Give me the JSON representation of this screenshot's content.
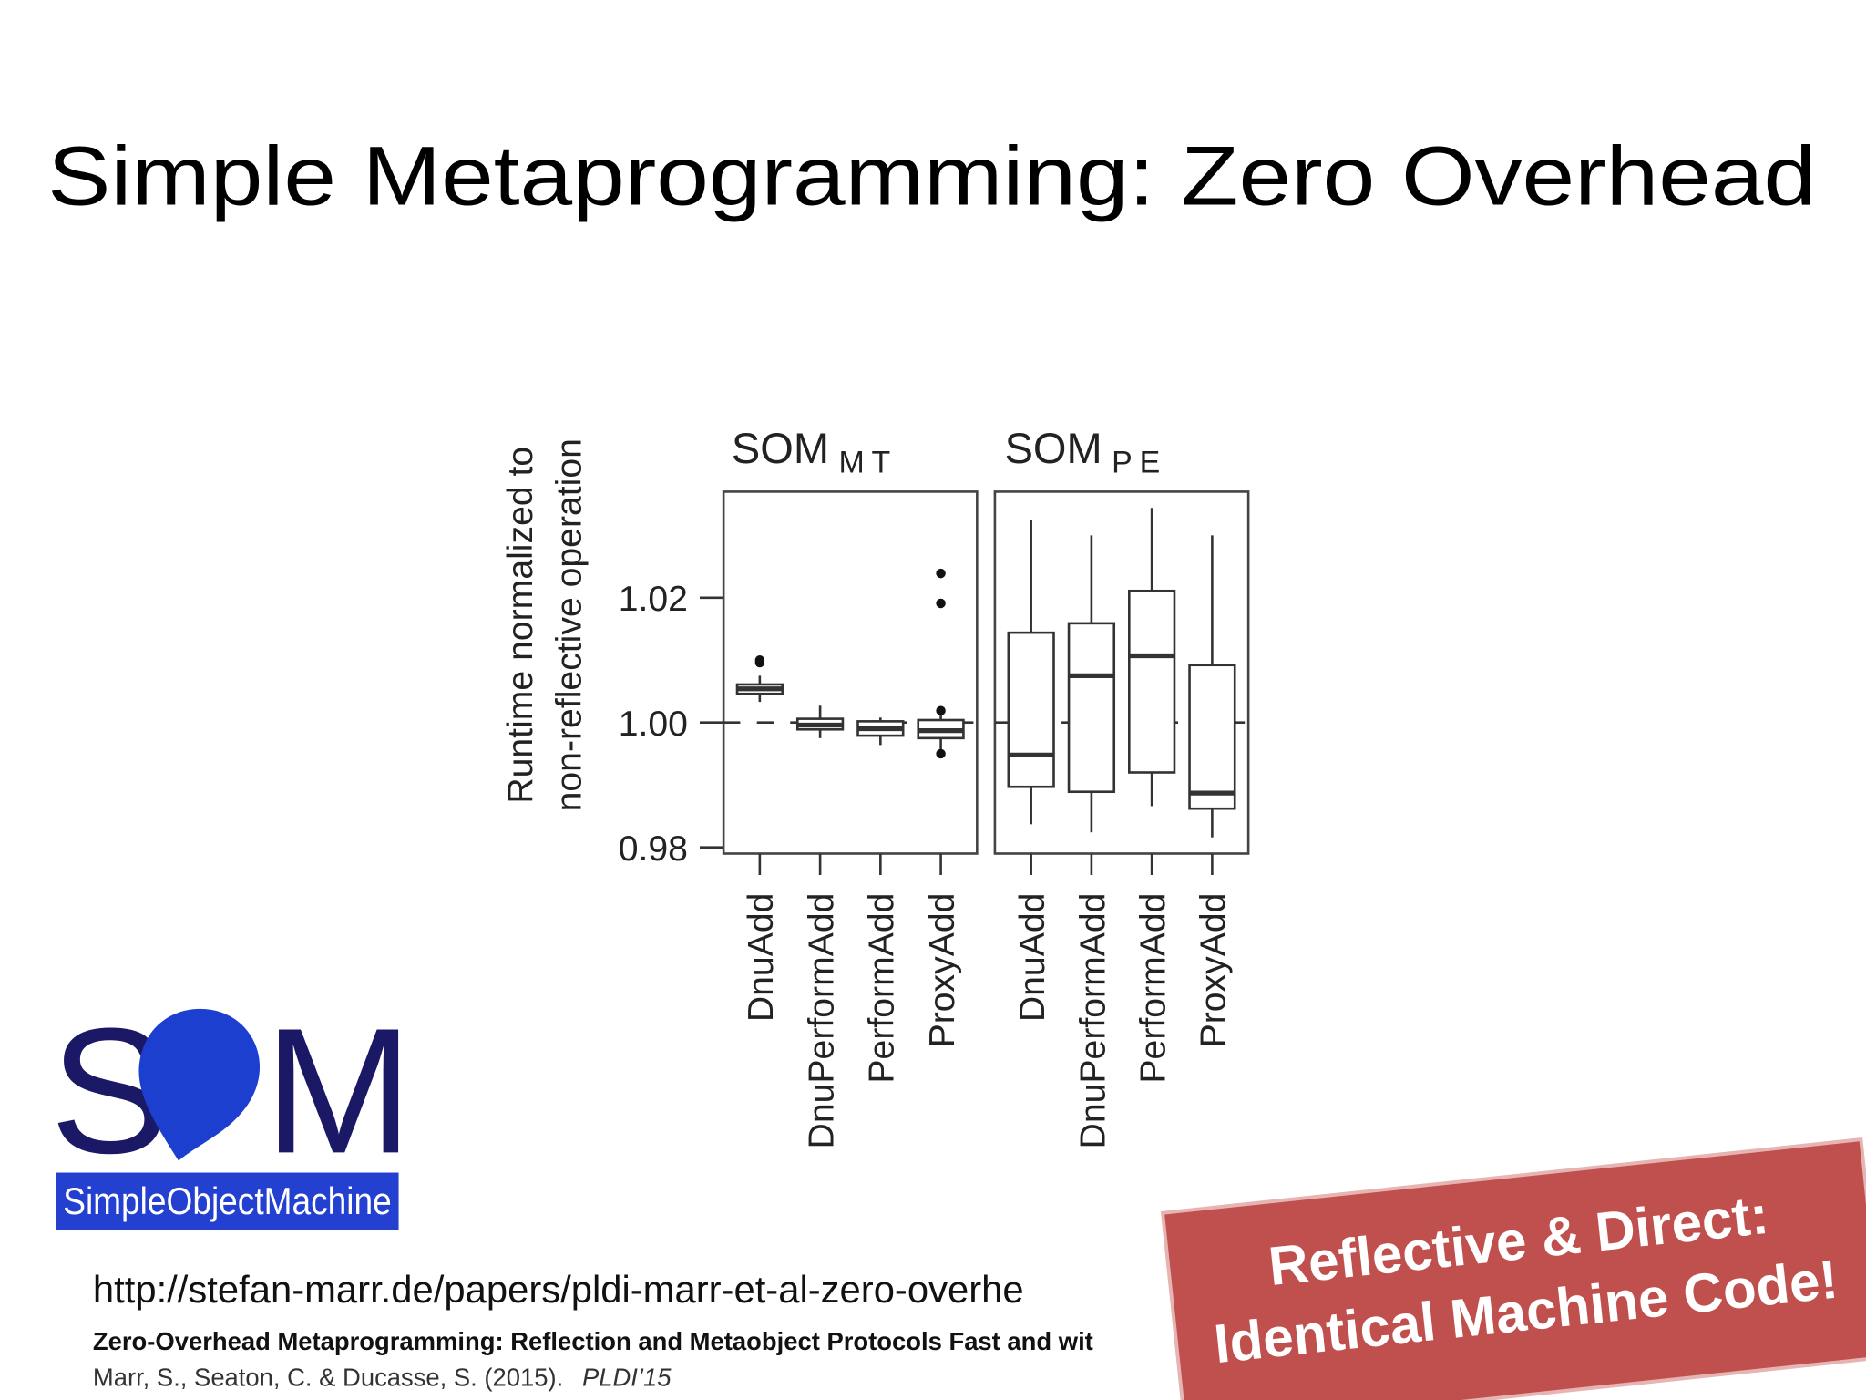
{
  "slide": {
    "title": "Simple Metaprogramming: Zero Overhead",
    "logo": {
      "left": "S",
      "right": "M",
      "caption": "SimpleObjectMachine"
    },
    "url": "http://stefan-marr.de/papers/pldi-marr-et-al-zero-overhe",
    "paper_title": "Zero-Overhead Metaprogramming: Reflection and Metaobject Protocols Fast and wit",
    "authors": "Marr, S., Seaton, C. & Ducasse, S. (2015).",
    "venue": "PLDI’15",
    "callout": [
      "Reflective & Direct:",
      "Identical Machine Code!"
    ]
  },
  "chart_data": {
    "type": "box",
    "ylabel": [
      "Runtime normalized to",
      "non-reflective operation"
    ],
    "ylim": [
      0.979,
      1.037
    ],
    "yticks": [
      0.98,
      {
        "value": 1,
        "label": "1.00"
      },
      1.02
    ],
    "hline": 1,
    "color": "#ffffff",
    "panels": [
      {
        "name": "SOM",
        "sub": "MT",
        "categories": [
          "DnuAdd",
          "DnuPerformAdd",
          "PerformAdd",
          "ProxyAdd"
        ],
        "boxes": [
          {
            "min": 1.0033,
            "q1": 1.0046,
            "median": 1.0054,
            "q3": 1.0061,
            "max": 1.0075,
            "outliers": [
              1.0096,
              1.01
            ]
          },
          {
            "min": 0.9975,
            "q1": 0.9989,
            "median": 0.9996,
            "q3": 1.0006,
            "max": 1.0027,
            "outliers": []
          },
          {
            "min": 0.9964,
            "q1": 0.9979,
            "median": 0.999,
            "q3": 1.0002,
            "max": 1.0008,
            "outliers": []
          },
          {
            "min": 0.9956,
            "q1": 0.9975,
            "median": 0.9987,
            "q3": 1.0004,
            "max": 1.0021,
            "outliers": [
              1.0239,
              1.0191,
              1.0019,
              0.995
            ]
          }
        ]
      },
      {
        "name": "SOM",
        "sub": "PE",
        "categories": [
          "DnuAdd",
          "DnuPerformAdd",
          "PerformAdd",
          "ProxyAdd"
        ],
        "boxes": [
          {
            "min": 0.9837,
            "q1": 0.9897,
            "median": 0.9948,
            "q3": 1.0144,
            "max": 1.0325,
            "outliers": []
          },
          {
            "min": 0.9824,
            "q1": 0.9889,
            "median": 1.0075,
            "q3": 1.0159,
            "max": 1.03,
            "outliers": []
          },
          {
            "min": 0.9866,
            "q1": 0.992,
            "median": 1.0107,
            "q3": 1.0211,
            "max": 1.0344,
            "outliers": []
          },
          {
            "min": 0.9816,
            "q1": 0.9862,
            "median": 0.9887,
            "q3": 1.0092,
            "max": 1.03,
            "outliers": []
          }
        ]
      }
    ]
  }
}
